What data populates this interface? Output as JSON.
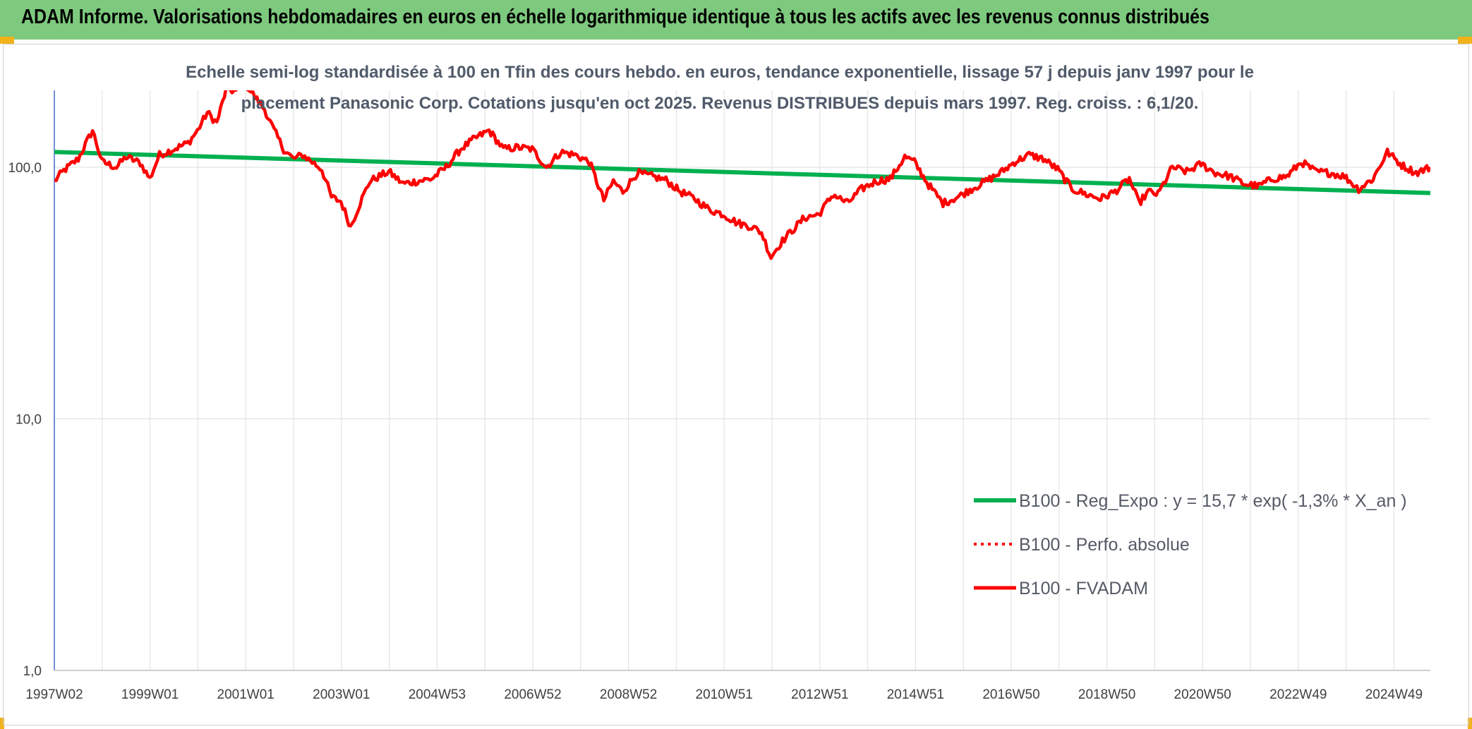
{
  "header": {
    "title": "ADAM Informe. Valorisations hebdomadaires en euros en échelle logarithmique identique à tous les actifs avec les revenus connus distribués"
  },
  "chart_data": {
    "type": "line",
    "title_lines": [
      "Echelle semi-log standardisée à 100 en Tfin des cours hebdo. en euros, tendance exponentielle, lissage 57 j depuis janv 1997 pour le",
      "placement Panasonic Corp. Cotations jusqu'en oct 2025. Revenus DISTRIBUES depuis mars 1997. Reg. croiss. : 6,1/20."
    ],
    "y_scale": "log",
    "ylim": [
      1,
      200
    ],
    "y_ticks": [
      {
        "value": 1,
        "label": "1,0"
      },
      {
        "value": 10,
        "label": "10,0"
      },
      {
        "value": 100,
        "label": "100,0"
      }
    ],
    "x_ticks": [
      "1997W02",
      "1999W01",
      "2001W01",
      "2003W01",
      "2004W53",
      "2006W52",
      "2008W52",
      "2010W51",
      "2012W51",
      "2014W51",
      "2016W50",
      "2018W50",
      "2020W50",
      "2022W49",
      "2024W49"
    ],
    "xlim": [
      1997.0,
      2025.8
    ],
    "grid": "vertical-and-horizontal",
    "legend_position": "bottom-right",
    "series": [
      {
        "name": "B100 - Reg_Expo : y = 15,7 * exp( -1,3% *  X_an )",
        "color": "#00b050",
        "style": "solid",
        "x": [
          1997.0,
          2025.8
        ],
        "y": [
          115,
          79
        ]
      },
      {
        "name": "B100 - Perfo. absolue",
        "color": "#ff0000",
        "style": "dotted",
        "x": [],
        "y": []
      },
      {
        "name": "B100 - FVADAM",
        "color": "#ff0000",
        "style": "solid",
        "x": [
          1997.0,
          1997.2,
          1997.5,
          1997.8,
          1998.0,
          1998.3,
          1998.5,
          1998.8,
          1999.0,
          1999.2,
          1999.5,
          1999.8,
          2000.0,
          2000.2,
          2000.4,
          2000.6,
          2000.8,
          2001.0,
          2001.2,
          2001.4,
          2001.6,
          2001.8,
          2002.0,
          2002.2,
          2002.4,
          2002.6,
          2002.8,
          2003.0,
          2003.2,
          2003.4,
          2003.6,
          2003.8,
          2004.0,
          2004.3,
          2004.6,
          2004.9,
          2005.2,
          2005.5,
          2005.8,
          2006.1,
          2006.4,
          2006.7,
          2007.0,
          2007.3,
          2007.6,
          2007.9,
          2008.2,
          2008.5,
          2008.7,
          2008.9,
          2009.2,
          2009.5,
          2009.8,
          2010.1,
          2010.4,
          2010.7,
          2011.0,
          2011.3,
          2011.6,
          2011.8,
          2012.0,
          2012.2,
          2012.4,
          2012.7,
          2013.0,
          2013.3,
          2013.6,
          2013.9,
          2014.2,
          2014.5,
          2014.8,
          2015.0,
          2015.3,
          2015.6,
          2015.9,
          2016.2,
          2016.5,
          2016.8,
          2017.1,
          2017.4,
          2017.7,
          2018.0,
          2018.3,
          2018.6,
          2018.9,
          2019.2,
          2019.5,
          2019.7,
          2019.9,
          2020.1,
          2020.4,
          2020.7,
          2021.0,
          2021.3,
          2021.6,
          2021.9,
          2022.2,
          2022.5,
          2022.8,
          2023.1,
          2023.4,
          2023.7,
          2024.0,
          2024.3,
          2024.6,
          2024.9,
          2025.2,
          2025.5,
          2025.8
        ],
        "y": [
          88,
          97,
          108,
          140,
          105,
          100,
          110,
          104,
          90,
          112,
          118,
          125,
          140,
          165,
          150,
          205,
          200,
          215,
          190,
          170,
          140,
          118,
          108,
          112,
          105,
          98,
          76,
          73,
          58,
          72,
          88,
          92,
          96,
          86,
          88,
          90,
          100,
          118,
          130,
          140,
          118,
          120,
          118,
          100,
          115,
          112,
          105,
          74,
          88,
          80,
          95,
          92,
          89,
          80,
          75,
          68,
          65,
          60,
          58,
          55,
          44,
          50,
          55,
          63,
          65,
          78,
          72,
          82,
          88,
          90,
          110,
          105,
          85,
          72,
          76,
          82,
          88,
          95,
          105,
          112,
          108,
          98,
          82,
          78,
          75,
          80,
          90,
          72,
          80,
          78,
          100,
          96,
          103,
          95,
          92,
          86,
          84,
          90,
          92,
          105,
          96,
          95,
          92,
          82,
          90,
          115,
          102,
          95,
          100
        ]
      }
    ]
  }
}
